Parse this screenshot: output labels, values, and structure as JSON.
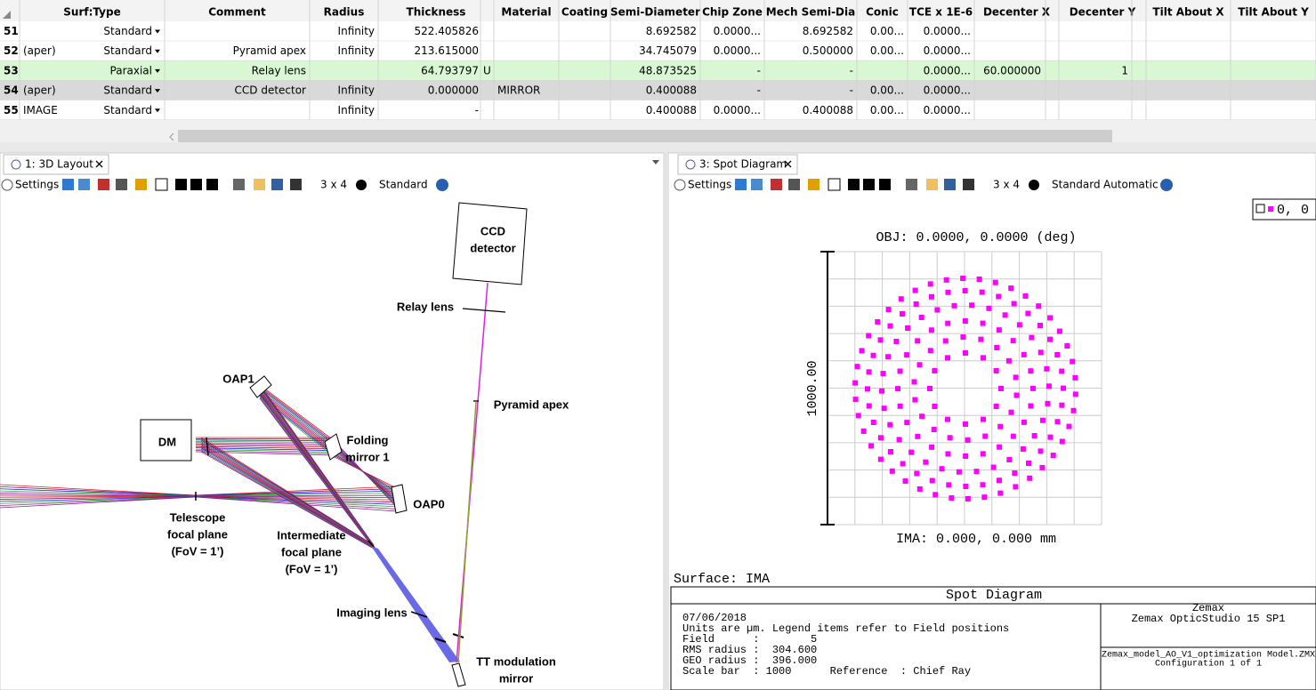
{
  "lens_table": {
    "headers": [
      "Surf:Type",
      "Comment",
      "Radius",
      "Thickness",
      "Material",
      "Coating",
      "Semi-Diameter",
      "Chip Zone",
      "Mech Semi-Dia",
      "Conic",
      "TCE x 1E-6",
      "Decenter X",
      "Decenter Y",
      "Tilt About X",
      "Tilt About Y"
    ],
    "rows": [
      {
        "number": "51",
        "cells": [
          "Standard",
          null,
          "Infinity",
          "522.405826",
          null,
          null,
          "8.692582",
          "0.0000...",
          "8.692582",
          "0.00...",
          "0.0000...",
          null,
          null,
          null,
          null
        ]
      },
      {
        "number": "52",
        "label": "(aper)",
        "cells": [
          "Standard",
          "Pyramid apex",
          "Infinity",
          "213.615000",
          null,
          null,
          "34.745079",
          "0.0000...",
          "0.500000",
          "0.00...",
          "0.0000...",
          null,
          null,
          null,
          null
        ]
      },
      {
        "number": "53",
        "solve": "U",
        "cells": [
          "Paraxial",
          "Relay lens",
          null,
          "64.793797",
          null,
          null,
          "48.873525",
          "-",
          "-",
          null,
          "0.0000...",
          "60.000000",
          "1",
          null,
          null
        ]
      },
      {
        "number": "54",
        "label": "(aper)",
        "cells": [
          "Standard",
          "CCD detector",
          "Infinity",
          "0.000000",
          "MIRROR",
          null,
          "0.400088",
          "-",
          "-",
          "0.00...",
          "0.0000...",
          null,
          null,
          null,
          null
        ]
      },
      {
        "number": "55",
        "label": "IMAGE",
        "cells": [
          "Standard",
          null,
          "Infinity",
          "-",
          null,
          null,
          "0.400088",
          "0.0000...",
          "0.400088",
          "0.00...",
          "0.0000...",
          null,
          null,
          null,
          null
        ]
      }
    ]
  },
  "layout_3d": {
    "tab": "1: 3D Layout",
    "toolbar": {
      "settings": "Settings",
      "grid": "3 x 4",
      "mode": "Standard"
    },
    "labels": {
      "ccd": [
        "CCD",
        "detector"
      ],
      "relay": [
        "Relay lens"
      ],
      "pyramid": [
        "Pyramid apex"
      ],
      "oap1": [
        "OAP1"
      ],
      "dm": [
        "DM"
      ],
      "folding": [
        "Folding",
        "mirror 1"
      ],
      "oap0": [
        "OAP0"
      ],
      "telescope": [
        "Telescope",
        "focal plane",
        "(FoV = 1’)"
      ],
      "intermediate": [
        "Intermediate",
        "focal plane",
        "(FoV = 1’)"
      ],
      "imaging": [
        "Imaging lens"
      ],
      "tt": [
        "TT modulation",
        "mirror"
      ]
    }
  },
  "spot_diagram": {
    "tab": "3: Spot Diagram",
    "toolbar": {
      "settings": "Settings",
      "grid": "3 x 4",
      "mode": "Standard",
      "scale": "Automatic"
    },
    "legend": "0, 0",
    "title": "OBJ: 0.0000, 0.0000 (deg)",
    "scale_label": "1000.00",
    "image_label": "IMA: 0.000, 0.000 mm",
    "surface": "Surface: IMA",
    "footer": {
      "title": "Spot Diagram",
      "info": [
        "07/06/2018",
        "Units are µm. Legend items refer to Field positions",
        "Field      :        5",
        "RMS radius :  304.600",
        "GEO radius :  396.000",
        "Scale bar  : 1000      Reference  : Chief Ray"
      ],
      "company": "Zemax",
      "product": "Zemax OpticStudio 15 SP1",
      "file": "Zemax_model_AO_V1_optimization Model.ZMX",
      "config": "Configuration 1 of 1"
    }
  }
}
